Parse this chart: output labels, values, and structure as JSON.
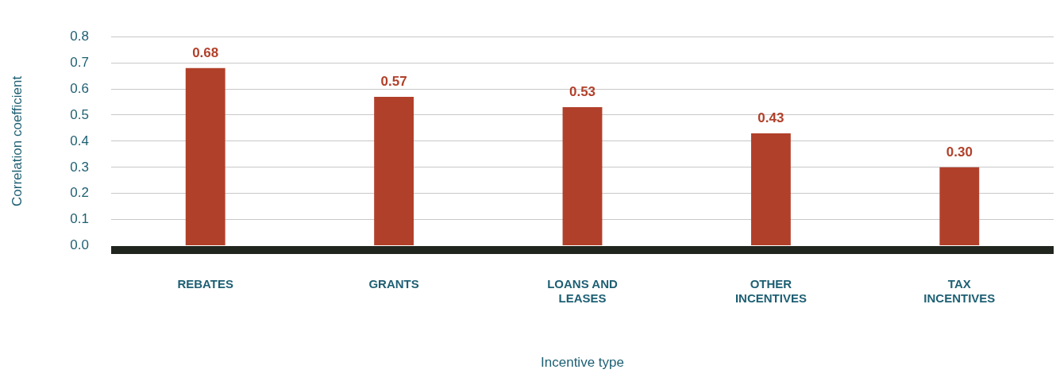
{
  "chart_data": {
    "type": "bar",
    "xlabel": "Incentive type",
    "ylabel": "Correlation coefficient",
    "categories": [
      "REBATES",
      "GRANTS",
      "LOANS AND LEASES",
      "OTHER INCENTIVES",
      "TAX INCENTIVES"
    ],
    "values": [
      0.68,
      0.57,
      0.53,
      0.43,
      0.3
    ],
    "value_labels": [
      "0.68",
      "0.57",
      "0.53",
      "0.43",
      "0.30"
    ],
    "color": "#b1402a",
    "ylim": [
      0,
      0.8
    ],
    "yticks": [
      {
        "value": 0,
        "label": "0.0"
      },
      0.1,
      0.2,
      0.3,
      0.4,
      0.5,
      0.6,
      0.7,
      0.8
    ],
    "grid": "y",
    "legend": false
  }
}
